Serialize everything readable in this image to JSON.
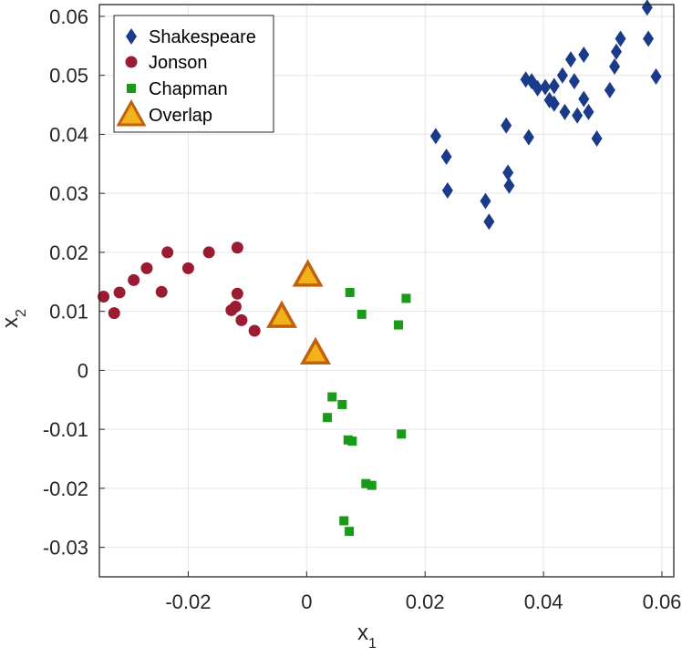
{
  "chart_data": {
    "type": "scatter",
    "title": "",
    "xlabel": {
      "main": "x",
      "sub": "1"
    },
    "ylabel": {
      "main": "x",
      "sub": "2"
    },
    "xlim": [
      -0.035,
      0.062
    ],
    "ylim": [
      -0.035,
      0.062
    ],
    "xticks": [
      -0.02,
      0,
      0.02,
      0.04,
      0.06
    ],
    "xtick_labels": [
      "-0.02",
      "0",
      "0.02",
      "0.04",
      "0.06"
    ],
    "yticks": [
      -0.03,
      -0.02,
      -0.01,
      0,
      0.01,
      0.02,
      0.03,
      0.04,
      0.05,
      0.06
    ],
    "ytick_labels": [
      "-0.03",
      "-0.02",
      "-0.01",
      "0",
      "0.01",
      "0.02",
      "0.03",
      "0.04",
      "0.05",
      "0.06"
    ],
    "grid": true,
    "legend_position": "top-left",
    "series": [
      {
        "name": "Shakespeare",
        "marker": "diamond",
        "color": "#1a3a8a",
        "points": [
          [
            0.0575,
            0.0615
          ],
          [
            0.0577,
            0.0562
          ],
          [
            0.059,
            0.0498
          ],
          [
            0.053,
            0.0562
          ],
          [
            0.0523,
            0.054
          ],
          [
            0.052,
            0.0515
          ],
          [
            0.0512,
            0.0475
          ],
          [
            0.049,
            0.0393
          ],
          [
            0.0476,
            0.0438
          ],
          [
            0.0468,
            0.046
          ],
          [
            0.0468,
            0.0535
          ],
          [
            0.0457,
            0.0432
          ],
          [
            0.0452,
            0.049
          ],
          [
            0.0446,
            0.0527
          ],
          [
            0.0436,
            0.0438
          ],
          [
            0.0432,
            0.05
          ],
          [
            0.0418,
            0.0452
          ],
          [
            0.0418,
            0.0482
          ],
          [
            0.041,
            0.0458
          ],
          [
            0.0403,
            0.048
          ],
          [
            0.039,
            0.0478
          ],
          [
            0.038,
            0.049
          ],
          [
            0.037,
            0.0493
          ],
          [
            0.0375,
            0.0395
          ],
          [
            0.0337,
            0.0415
          ],
          [
            0.034,
            0.0335
          ],
          [
            0.0342,
            0.0313
          ],
          [
            0.0302,
            0.0287
          ],
          [
            0.0308,
            0.0252
          ],
          [
            0.0218,
            0.0397
          ],
          [
            0.0236,
            0.0362
          ],
          [
            0.0238,
            0.0305
          ]
        ]
      },
      {
        "name": "Jonson",
        "marker": "circle",
        "color": "#9b1b30",
        "points": [
          [
            -0.0343,
            0.0125
          ],
          [
            -0.0325,
            0.0097
          ],
          [
            -0.0316,
            0.0132
          ],
          [
            -0.0292,
            0.0153
          ],
          [
            -0.027,
            0.0173
          ],
          [
            -0.0245,
            0.0133
          ],
          [
            -0.0235,
            0.02
          ],
          [
            -0.02,
            0.0173
          ],
          [
            -0.0165,
            0.02
          ],
          [
            -0.0117,
            0.0208
          ],
          [
            -0.0117,
            0.013
          ],
          [
            -0.012,
            0.0108
          ],
          [
            -0.0127,
            0.0102
          ],
          [
            -0.011,
            0.0085
          ],
          [
            -0.0088,
            0.0067
          ]
        ]
      },
      {
        "name": "Chapman",
        "marker": "square",
        "color": "#1a9a1a",
        "points": [
          [
            0.0073,
            0.0132
          ],
          [
            0.0093,
            0.0095
          ],
          [
            0.0168,
            0.0122
          ],
          [
            0.0155,
            0.0077
          ],
          [
            0.0043,
            -0.0045
          ],
          [
            0.006,
            -0.0058
          ],
          [
            0.0035,
            -0.008
          ],
          [
            0.007,
            -0.0118
          ],
          [
            0.0077,
            -0.012
          ],
          [
            0.016,
            -0.0108
          ],
          [
            0.01,
            -0.0192
          ],
          [
            0.011,
            -0.0195
          ],
          [
            0.0063,
            -0.0255
          ],
          [
            0.0072,
            -0.0273
          ]
        ]
      },
      {
        "name": "Overlap",
        "marker": "triangle",
        "color": "#f2b21c",
        "edge_color": "#c0610f",
        "points": [
          [
            0.0002,
            0.016
          ],
          [
            -0.0042,
            0.009
          ],
          [
            0.0015,
            0.0028
          ]
        ]
      }
    ]
  }
}
